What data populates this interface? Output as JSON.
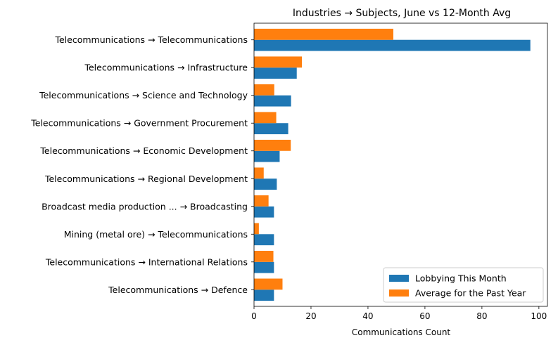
{
  "chart_data": {
    "type": "bar",
    "orientation": "horizontal",
    "title": "Industries → Subjects, June vs 12-Month Avg",
    "xlabel": "Communications Count",
    "ylabel": "",
    "xlim": [
      0,
      103
    ],
    "xticks": [
      0,
      20,
      40,
      60,
      80,
      100
    ],
    "grid": false,
    "legend_position": "lower-right",
    "categories": [
      "Telecommunications → Telecommunications",
      "Telecommunications → Infrastructure",
      "Telecommunications → Science and Technology",
      "Telecommunications → Government Procurement",
      "Telecommunications → Economic Development",
      "Telecommunications → Regional Development",
      "Broadcast media production ... → Broadcasting",
      "Mining (metal ore) → Telecommunications",
      "Telecommunications → International Relations",
      "Telecommunications → Defence"
    ],
    "series": [
      {
        "name": "Lobbying This Month",
        "color": "#1f77b4",
        "values": [
          97,
          15,
          13,
          12,
          9,
          8,
          7,
          7,
          7,
          7
        ]
      },
      {
        "name": "Average for the Past Year",
        "color": "#ff7f0e",
        "values": [
          48.9,
          16.8,
          7.1,
          7.8,
          12.9,
          3.4,
          5.1,
          1.7,
          6.8,
          10.0
        ]
      }
    ]
  }
}
